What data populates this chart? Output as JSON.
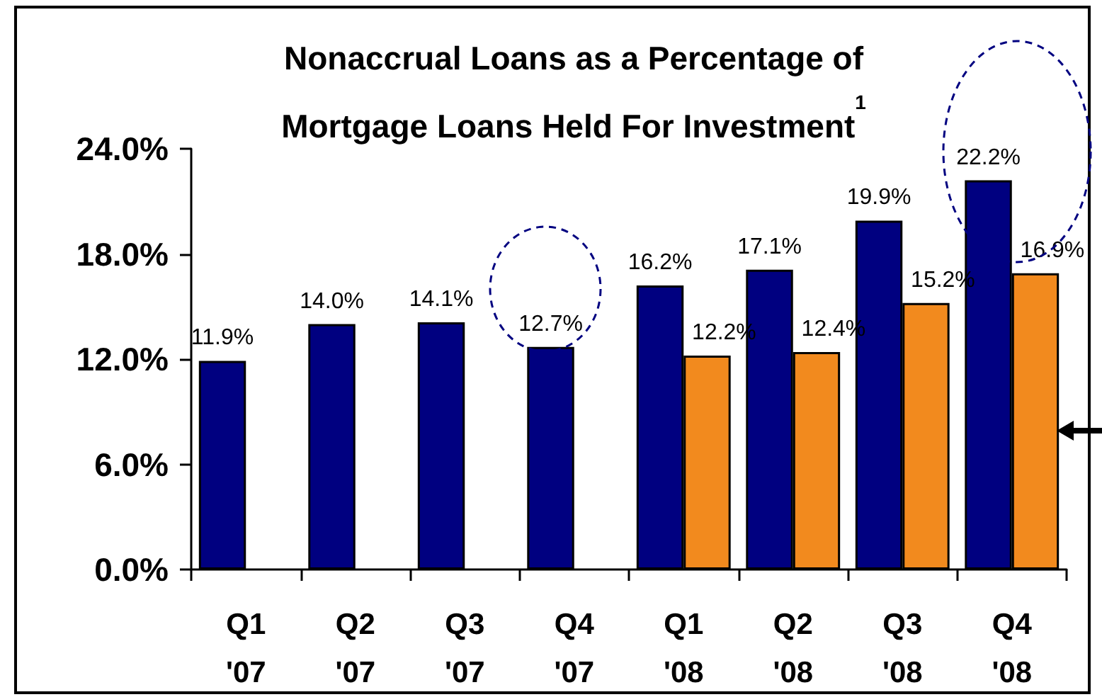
{
  "chart_data": {
    "type": "bar",
    "title": "Nonaccrual Loans as a Percentage of\nMortgage Loans Held For Investment$^{1}$",
    "categories": [
      "Q1\n'07",
      "Q2\n'07",
      "Q3\n'07",
      "Q4\n'07",
      "Q1\n'08",
      "Q2\n'08",
      "Q3\n'08",
      "Q4\n'08"
    ],
    "series": [
      {
        "color": "#000080",
        "values": [
          11.9,
          14.0,
          14.1,
          12.7,
          16.2,
          17.1,
          19.9,
          22.2
        ],
        "value_labels": [
          "11.9%",
          "14.0%",
          "14.1%",
          "12.7%",
          "16.2%",
          "17.1%",
          "19.9%",
          "22.2%"
        ]
      },
      {
        "color": "#f28a1e",
        "values": [
          null,
          null,
          null,
          null,
          12.2,
          12.4,
          15.2,
          16.9
        ],
        "value_labels": [
          null,
          null,
          null,
          null,
          "12.2%",
          "12.4%",
          "15.2%",
          "16.9%"
        ]
      }
    ],
    "ylim": [
      0,
      24
    ],
    "yticks": [
      {
        "value": 0,
        "label": "0.0%"
      },
      {
        "value": 6,
        "label": "6.0%"
      },
      {
        "value": 12,
        "label": "12.0%"
      },
      {
        "value": 18,
        "label": "18.0%"
      },
      {
        "value": 24,
        "label": "24.0%"
      }
    ],
    "grid": false
  }
}
